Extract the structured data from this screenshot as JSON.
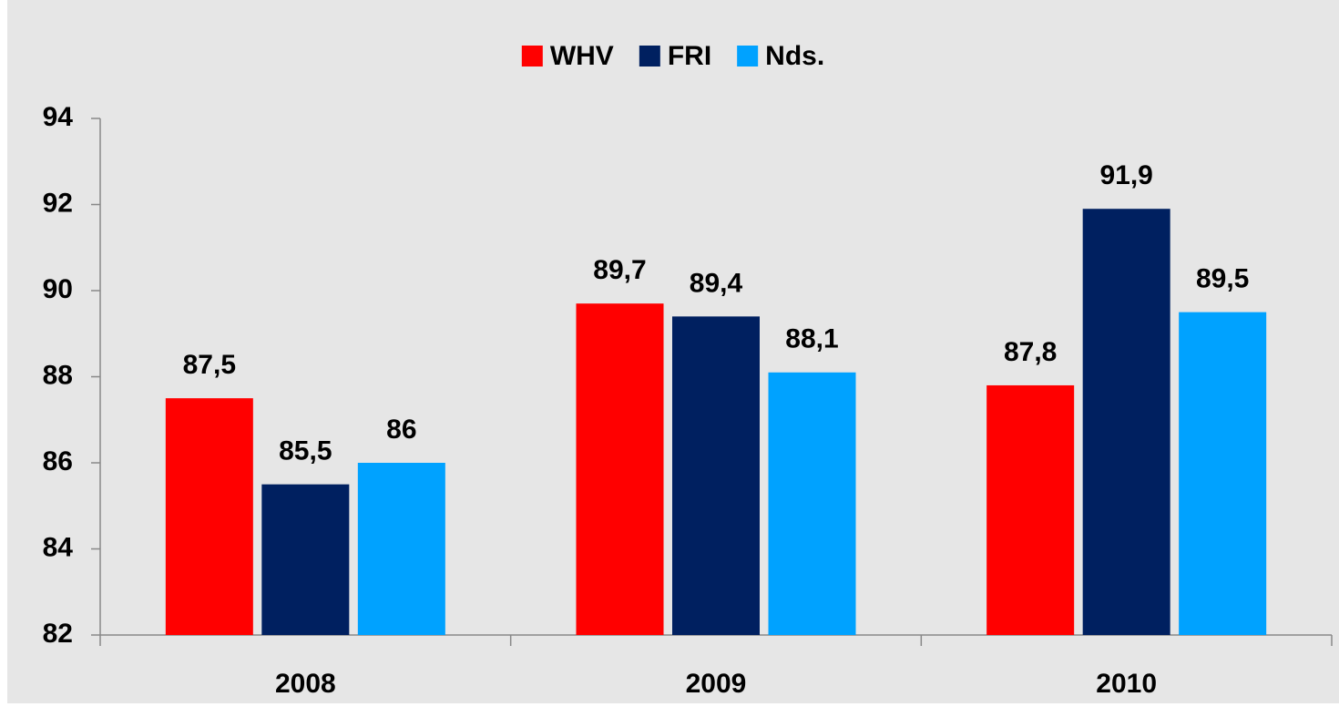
{
  "chart_data": {
    "type": "bar",
    "categories": [
      "2008",
      "2009",
      "2010"
    ],
    "series": [
      {
        "name": "WHV",
        "color": "#ff0000",
        "values": [
          87.5,
          89.7,
          87.8
        ],
        "value_labels": [
          "87,5",
          "89,7",
          "87,8"
        ]
      },
      {
        "name": "FRI",
        "color": "#002060",
        "values": [
          85.5,
          89.4,
          91.9
        ],
        "value_labels": [
          "85,5",
          "89,4",
          "91,9"
        ]
      },
      {
        "name": "Nds.",
        "color": "#00a2ff",
        "values": [
          86,
          88.1,
          89.5
        ],
        "value_labels": [
          "86",
          "88,1",
          "89,5"
        ]
      }
    ],
    "ylim": [
      82,
      94
    ],
    "yticks": [
      82,
      84,
      86,
      88,
      90,
      92,
      94
    ],
    "grid": false,
    "legend": "top"
  }
}
